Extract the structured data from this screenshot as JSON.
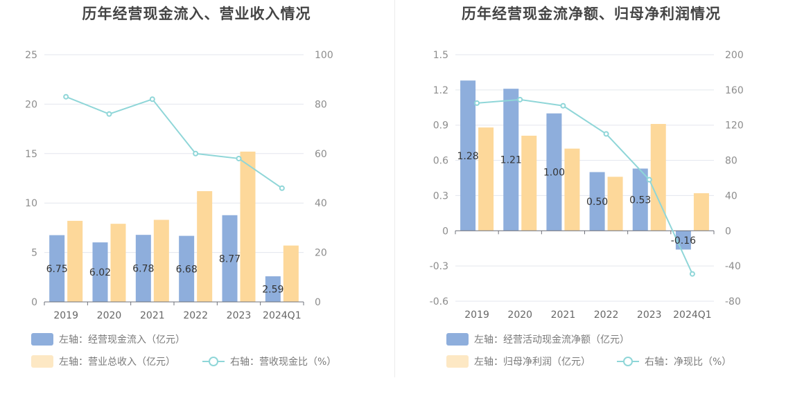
{
  "colors": {
    "bar_blue": "#8eaedc",
    "bar_orange": "#fdd89a",
    "line": "#8fd6d8",
    "grid": "#e3e6ee",
    "legend_orange": "#fde8c4"
  },
  "chart_data": [
    {
      "type": "bar",
      "title": "历年经营现金流入、营业收入情况",
      "categories": [
        "2019",
        "2020",
        "2021",
        "2022",
        "2023",
        "2024Q1"
      ],
      "left_axis": {
        "ylim": [
          0,
          25
        ],
        "ticks": [
          "0",
          "5",
          "10",
          "15",
          "20",
          "25"
        ]
      },
      "right_axis": {
        "ylim": [
          0,
          100
        ],
        "ticks": [
          "0",
          "20",
          "40",
          "60",
          "80",
          "100"
        ]
      },
      "series": [
        {
          "name": "左轴：经营现金流入（亿元）",
          "kind": "bar",
          "axis": "left",
          "values": [
            6.75,
            6.02,
            6.78,
            6.68,
            8.77,
            2.59
          ],
          "labels": [
            "6.75",
            "6.02",
            "6.78",
            "6.68",
            "8.77",
            "2.59"
          ]
        },
        {
          "name": "左轴：营业总收入（亿元）",
          "kind": "bar",
          "axis": "left",
          "values": [
            8.2,
            7.9,
            8.3,
            11.2,
            15.2,
            5.7
          ]
        },
        {
          "name": "右轴：营收现金比（%）",
          "kind": "line",
          "axis": "right",
          "values": [
            83,
            76,
            82,
            60,
            58,
            46
          ]
        }
      ]
    },
    {
      "type": "bar",
      "title": "历年经营现金流净额、归母净利润情况",
      "categories": [
        "2019",
        "2020",
        "2021",
        "2022",
        "2023",
        "2024Q1"
      ],
      "left_axis": {
        "ylim": [
          -0.6,
          1.5
        ],
        "ticks": [
          "-0.6",
          "-0.3",
          "0",
          "0.3",
          "0.6",
          "0.9",
          "1.2",
          "1.5"
        ]
      },
      "right_axis": {
        "ylim": [
          -80,
          200
        ],
        "ticks": [
          "-80",
          "-40",
          "0",
          "40",
          "80",
          "120",
          "160",
          "200"
        ]
      },
      "series": [
        {
          "name": "左轴：经营活动现金流净额（亿元）",
          "kind": "bar",
          "axis": "left",
          "values": [
            1.28,
            1.21,
            1.0,
            0.5,
            0.53,
            -0.16
          ],
          "labels": [
            "1.28",
            "1.21",
            "1.00",
            "0.50",
            "0.53",
            "-0.16"
          ]
        },
        {
          "name": "左轴：归母净利润（亿元）",
          "kind": "bar",
          "axis": "left",
          "values": [
            0.88,
            0.81,
            0.7,
            0.46,
            0.91,
            0.32
          ]
        },
        {
          "name": "右轴：净现比（%）",
          "kind": "line",
          "axis": "right",
          "values": [
            145,
            149,
            142,
            110,
            58,
            -49
          ]
        }
      ]
    }
  ]
}
